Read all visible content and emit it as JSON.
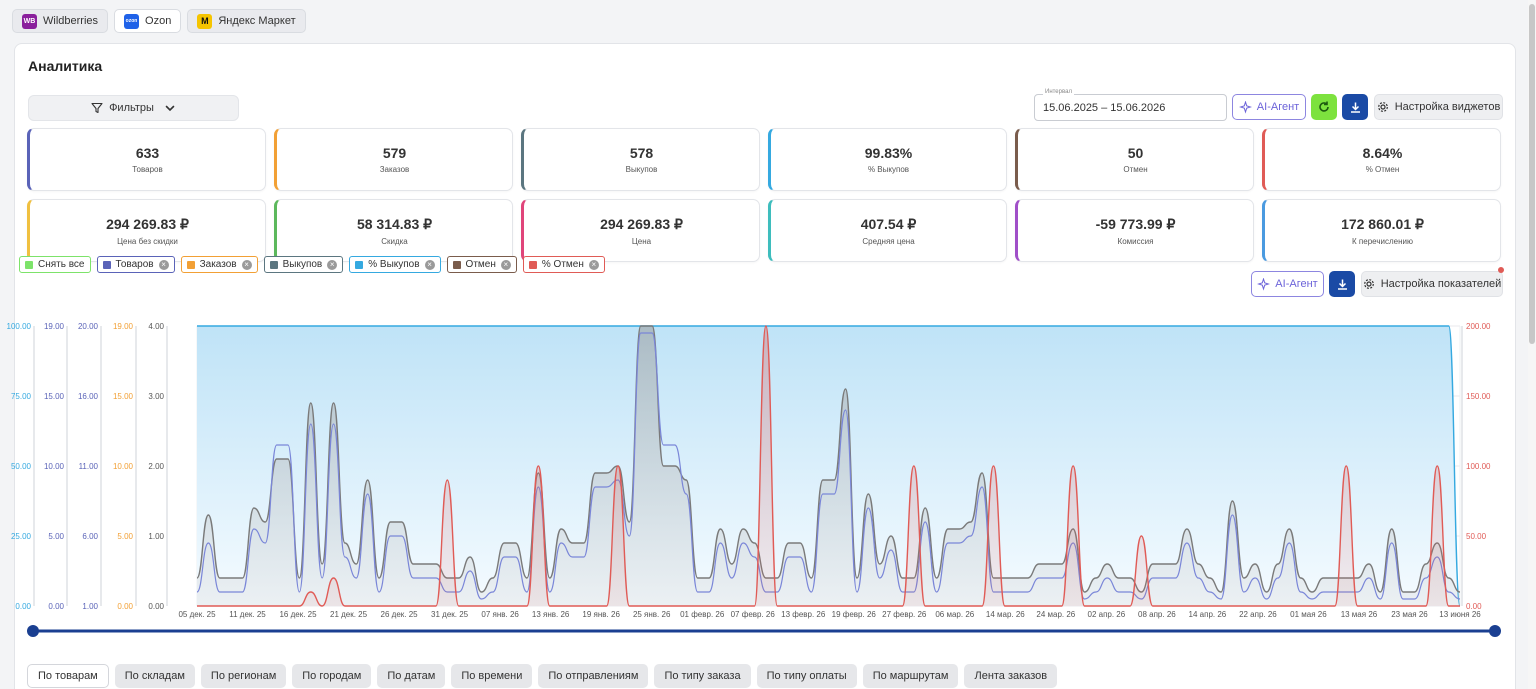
{
  "marketplaces": [
    {
      "name": "Wildberries",
      "logo_text": "WB",
      "color": "#8a1f9c",
      "active": false
    },
    {
      "name": "Ozon",
      "logo_text": "ozon",
      "color": "#1f62e8",
      "active": true
    },
    {
      "name": "Яндекс Маркет",
      "logo_text": "",
      "color": "#f5c400",
      "active": false
    }
  ],
  "panel": {
    "title": "Аналитика",
    "filters_label": "Фильтры",
    "interval_label": "Интервал",
    "interval_value": "15.06.2025 – 15.06.2026",
    "ai_agent_label": "AI-Агент",
    "widget_settings_label": "Настройка виджетов",
    "indicator_settings_label": "Настройка показателей"
  },
  "kpis": [
    {
      "value": "633",
      "label": "Товаров",
      "color": "#5a63b8"
    },
    {
      "value": "579",
      "label": "Заказов",
      "color": "#f2a035"
    },
    {
      "value": "578",
      "label": "Выкупов",
      "color": "#5b7680"
    },
    {
      "value": "99.83%",
      "label": "% Выкупов",
      "color": "#35a9e0"
    },
    {
      "value": "50",
      "label": "Отмен",
      "color": "#7a5c4c"
    },
    {
      "value": "8.64%",
      "label": "% Отмен",
      "color": "#e05b56"
    },
    {
      "value": "294 269.83 ₽",
      "label": "Цена без скидки",
      "color": "#f0c040"
    },
    {
      "value": "58 314.83 ₽",
      "label": "Скидка",
      "color": "#5cb85c"
    },
    {
      "value": "294 269.83 ₽",
      "label": "Цена",
      "color": "#e0457a"
    },
    {
      "value": "407.54 ₽",
      "label": "Средняя цена",
      "color": "#3ebdbd"
    },
    {
      "value": "-59 773.99 ₽",
      "label": "Комиссия",
      "color": "#a04fc8"
    },
    {
      "value": "172 860.01 ₽",
      "label": "К перечислению",
      "color": "#4a9ae0"
    }
  ],
  "legend": [
    {
      "label": "Снять все",
      "color": "#7de36a",
      "close": false
    },
    {
      "label": "Товаров",
      "color": "#5a63b8",
      "close": true
    },
    {
      "label": "Заказов",
      "color": "#f2a035",
      "close": true
    },
    {
      "label": "Выкупов",
      "color": "#5b7680",
      "close": true
    },
    {
      "label": "% Выкупов",
      "color": "#35a9e0",
      "close": true
    },
    {
      "label": "Отмен",
      "color": "#7a5c4c",
      "close": true
    },
    {
      "label": "% Отмен",
      "color": "#e05b56",
      "close": true
    }
  ],
  "chart_data": {
    "type": "area",
    "x_tick_labels": [
      "05 дек. 25",
      "11 дек. 25",
      "16 дек. 25",
      "21 дек. 25",
      "26 дек. 25",
      "31 дек. 25",
      "07 янв. 26",
      "13 янв. 26",
      "19 янв. 26",
      "25 янв. 26",
      "01 февр. 26",
      "07 февр. 26",
      "13 февр. 26",
      "19 февр. 26",
      "27 февр. 26",
      "06 мар. 26",
      "14 мар. 26",
      "24 мар. 26",
      "02 апр. 26",
      "08 апр. 26",
      "14 апр. 26",
      "22 апр. 26",
      "01 мая 26",
      "13 мая 26",
      "23 мая 26",
      "13 июня 26"
    ],
    "axes": [
      {
        "series": "% Выкупов",
        "color": "#35a9e0",
        "ticks": [
          "100.00",
          "75.00",
          "50.00",
          "25.00",
          "0.00"
        ]
      },
      {
        "series": "Товаров",
        "color": "#5a63b8",
        "ticks": [
          "19.00",
          "15.00",
          "10.00",
          "5.00",
          "0.00"
        ]
      },
      {
        "series": "Выкупов",
        "color": "#5a63b8",
        "ticks": [
          "20.00",
          "16.00",
          "11.00",
          "6.00",
          "1.00"
        ]
      },
      {
        "series": "Заказов",
        "color": "#f2a035",
        "ticks": [
          "19.00",
          "15.00",
          "10.00",
          "5.00",
          "0.00"
        ]
      },
      {
        "series": "Отмен",
        "color": "#555555",
        "ticks": [
          "4.00",
          "3.00",
          "2.00",
          "1.00",
          "0.00"
        ]
      },
      {
        "series": "% Отмен",
        "color": "#e05b56",
        "ticks": [
          "200.00",
          "150.00",
          "100.00",
          "50.00",
          "0.00"
        ]
      }
    ],
    "ylim_main": [
      0,
      4
    ],
    "series": [
      {
        "name": "Выкупов",
        "color": "#7a7a7a",
        "values": [
          0.4,
          1.3,
          0.4,
          0.4,
          0.4,
          1.4,
          1.2,
          2.1,
          2.1,
          0.4,
          2.9,
          0.6,
          2.9,
          0.9,
          0.6,
          1.8,
          0.4,
          1.2,
          1.2,
          0.6,
          0.6,
          0.6,
          0.4,
          0.4,
          0.7,
          0.2,
          0.4,
          0.9,
          0.9,
          0.4,
          1.9,
          0.4,
          1.1,
          0.9,
          0.9,
          1.9,
          1.9,
          2.0,
          1.2,
          4.0,
          4.0,
          2.0,
          2.0,
          1.8,
          0.4,
          0.4,
          1.1,
          0.6,
          1.1,
          0.9,
          0.4,
          0.4,
          0.9,
          0.9,
          0.4,
          1.8,
          1.8,
          3.1,
          0.4,
          1.6,
          0.6,
          1.0,
          0.4,
          0.4,
          1.4,
          0.4,
          1.1,
          1.1,
          1.2,
          1.9,
          0.4,
          0.4,
          0.4,
          0.4,
          0.6,
          0.6,
          0.6,
          1.1,
          0.2,
          0.4,
          0.6,
          0.4,
          0.4,
          0.2,
          0.6,
          0.6,
          0.6,
          1.1,
          0.6,
          0.4,
          0.2,
          1.5,
          0.4,
          0.6,
          0.2,
          0.6,
          1.1,
          0.4,
          0.2,
          0.4,
          0.4,
          0.4,
          0.4,
          0.6,
          0.2,
          1.1,
          0.2,
          0.2,
          0.6,
          0.9,
          0.4,
          0.2
        ]
      },
      {
        "name": "Товаров",
        "color": "#7a86d8",
        "values": [
          0.2,
          0.9,
          0.2,
          0.2,
          0.2,
          1.1,
          0.9,
          2.3,
          2.3,
          0.2,
          2.6,
          0.4,
          2.6,
          0.7,
          0.4,
          1.6,
          0.2,
          1.0,
          1.0,
          0.4,
          0.4,
          0.4,
          0.2,
          0.2,
          0.5,
          0.1,
          0.2,
          0.7,
          0.7,
          0.2,
          1.7,
          0.2,
          0.9,
          0.7,
          0.7,
          1.7,
          1.7,
          1.8,
          1.0,
          3.9,
          3.9,
          2.3,
          2.3,
          1.6,
          0.2,
          0.2,
          0.9,
          0.4,
          0.9,
          0.7,
          0.2,
          0.2,
          0.7,
          0.7,
          0.2,
          1.6,
          1.6,
          2.8,
          0.2,
          1.4,
          0.4,
          0.8,
          0.2,
          0.2,
          1.2,
          0.2,
          0.9,
          0.9,
          1.0,
          1.7,
          0.2,
          0.2,
          0.2,
          0.2,
          0.4,
          0.4,
          0.4,
          0.9,
          0.1,
          0.2,
          0.4,
          0.2,
          0.2,
          0.1,
          0.4,
          0.4,
          0.4,
          0.9,
          0.4,
          0.2,
          0.1,
          1.3,
          0.2,
          0.4,
          0.1,
          0.4,
          0.9,
          0.2,
          0.1,
          0.2,
          0.2,
          0.2,
          0.2,
          0.4,
          0.1,
          0.9,
          0.1,
          0.1,
          0.4,
          0.7,
          0.2,
          0.1
        ]
      },
      {
        "name": "% Отмен",
        "color": "#e05b56",
        "values": [
          0,
          0,
          0,
          0,
          0,
          0,
          0,
          0,
          0,
          0,
          0.2,
          0,
          0.4,
          0,
          0,
          0,
          0,
          0,
          0,
          0,
          0,
          0,
          1.8,
          0,
          0,
          0,
          0,
          0,
          0,
          0,
          2.0,
          0,
          0,
          0,
          0,
          0,
          0,
          2.0,
          0,
          0,
          0,
          0,
          0,
          0,
          0,
          0,
          0,
          0,
          0,
          0,
          4.0,
          0,
          0,
          0,
          0,
          0,
          0,
          0,
          0,
          0,
          0,
          0,
          0,
          2.0,
          0,
          0,
          0,
          0,
          0,
          0,
          2.0,
          0,
          0,
          0,
          0,
          0,
          0,
          2.0,
          0,
          0,
          0,
          0,
          0,
          1.0,
          0,
          0,
          0,
          0,
          0,
          0,
          0,
          0,
          0,
          0,
          0,
          0,
          0,
          0,
          0,
          0,
          0,
          2.0,
          0,
          0,
          0,
          0,
          0,
          0,
          0,
          2.0,
          0,
          0
        ]
      },
      {
        "name": "% Выкупов",
        "color": "#35a9e0",
        "values": [
          4,
          4,
          4,
          4,
          4,
          4,
          4,
          4,
          4,
          4,
          4,
          4,
          4,
          4,
          4,
          4,
          4,
          4,
          4,
          4,
          4,
          4,
          4,
          4,
          4,
          4,
          4,
          4,
          4,
          4,
          4,
          4,
          4,
          4,
          4,
          4,
          4,
          4,
          4,
          4,
          4,
          4,
          4,
          4,
          4,
          4,
          4,
          4,
          4,
          4,
          4,
          4,
          4,
          4,
          4,
          4,
          4,
          4,
          4,
          4,
          4,
          4,
          4,
          4,
          4,
          4,
          4,
          4,
          4,
          4,
          4,
          4,
          4,
          4,
          4,
          4,
          4,
          4,
          4,
          4,
          4,
          4,
          4,
          4,
          4,
          4,
          4,
          4,
          4,
          4,
          4,
          4,
          4,
          4,
          4,
          4,
          4,
          4,
          4,
          4,
          4,
          4,
          4,
          4,
          4,
          4,
          4,
          4,
          4,
          4,
          4,
          4,
          0
        ]
      }
    ]
  },
  "tabs": [
    "По товарам",
    "По складам",
    "По регионам",
    "По городам",
    "По датам",
    "По времени",
    "По отправлениям",
    "По типу заказа",
    "По типу оплаты",
    "По маршрутам",
    "Лента заказов"
  ]
}
